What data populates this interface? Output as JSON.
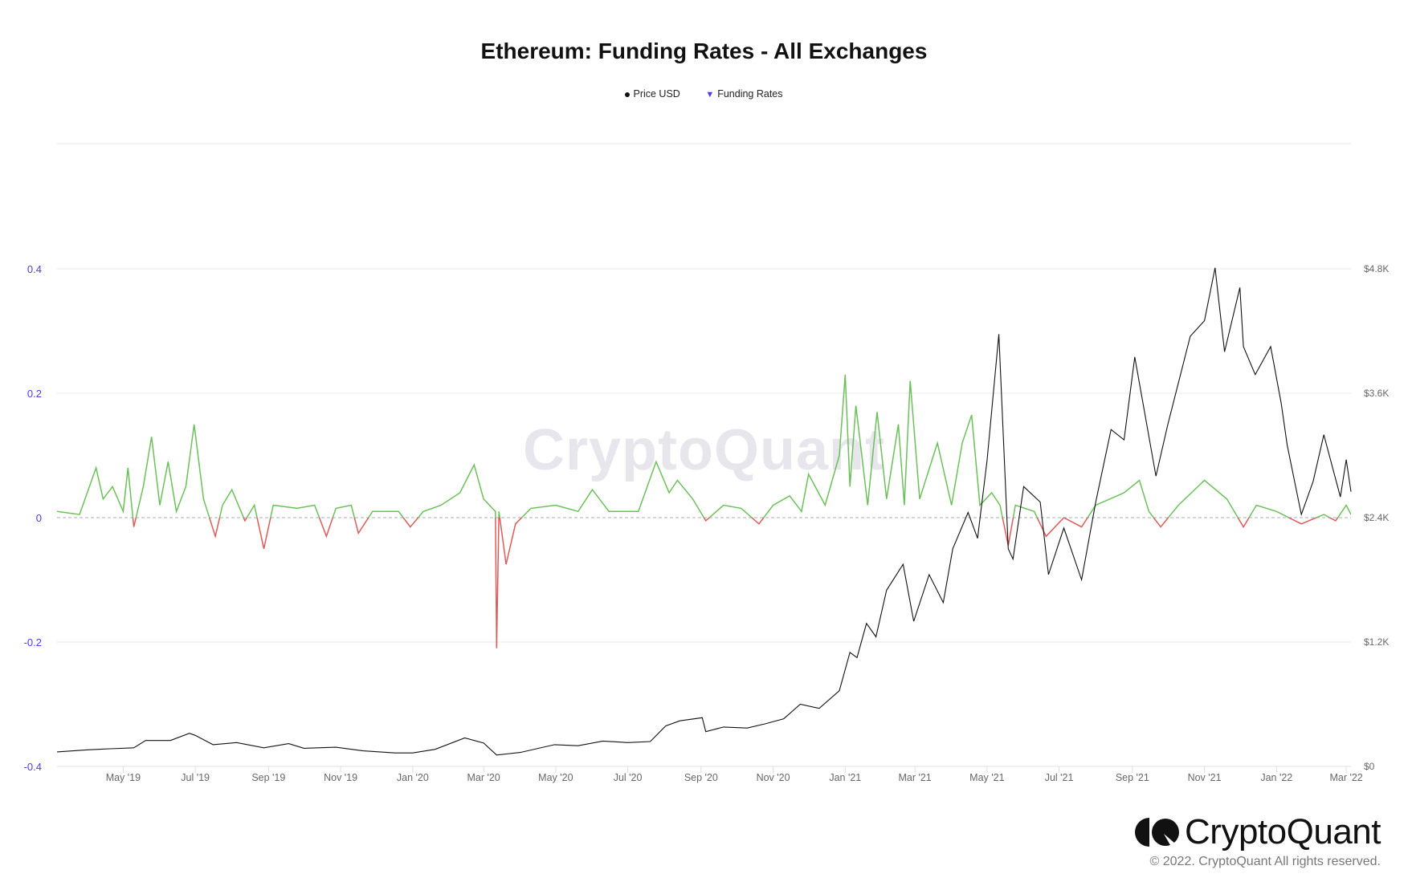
{
  "chart_data": {
    "type": "line",
    "title": "Ethereum: Funding Rates - All Exchanges",
    "legend": [
      {
        "name": "Price USD",
        "marker": "circle",
        "color": "#111111"
      },
      {
        "name": "Funding Rates",
        "marker": "triangle-down",
        "color": "#4a3cf0"
      }
    ],
    "legend_placement": "top-center",
    "x_range": [
      "2019-03-06",
      "2022-03-05"
    ],
    "x_ticks": [
      "May '19",
      "Jul '19",
      "Sep '19",
      "Nov '19",
      "Jan '20",
      "Mar '20",
      "May '20",
      "Jul '20",
      "Sep '20",
      "Nov '20",
      "Jan '21",
      "Mar '21",
      "May '21",
      "Jul '21",
      "Sep '21",
      "Nov '21",
      "Jan '22",
      "Mar '22"
    ],
    "x_tick_dates": [
      "2019-05-01",
      "2019-07-01",
      "2019-09-01",
      "2019-11-01",
      "2020-01-01",
      "2020-03-01",
      "2020-05-01",
      "2020-07-01",
      "2020-09-01",
      "2020-11-01",
      "2021-01-01",
      "2021-03-01",
      "2021-05-01",
      "2021-07-01",
      "2021-09-01",
      "2021-11-01",
      "2022-01-01",
      "2022-03-01"
    ],
    "y_left": {
      "range": [
        -0.4,
        0.4
      ],
      "ticks": [
        "0.4",
        "0.2",
        "0",
        "-0.2",
        "-0.4"
      ],
      "tick_values": [
        0.4,
        0.2,
        0,
        -0.2,
        -0.4
      ],
      "color": "#4a3cf0"
    },
    "y_right": {
      "range": [
        0,
        4800
      ],
      "ticks": [
        "$4.8K",
        "$3.6K",
        "$2.4K",
        "$1.2K",
        "$0"
      ],
      "tick_values": [
        4800,
        3600,
        2400,
        1200,
        0
      ]
    },
    "grid": true,
    "colors": {
      "positive": "#6cc05a",
      "negative": "#e05a5a",
      "price": "#111111"
    },
    "series": [
      {
        "name": "Price USD",
        "axis": "right",
        "points": [
          [
            "2019-03-06",
            140
          ],
          [
            "2019-04-01",
            160
          ],
          [
            "2019-04-20",
            170
          ],
          [
            "2019-05-10",
            180
          ],
          [
            "2019-05-20",
            250
          ],
          [
            "2019-06-10",
            250
          ],
          [
            "2019-06-26",
            320
          ],
          [
            "2019-07-01",
            300
          ],
          [
            "2019-07-16",
            210
          ],
          [
            "2019-08-05",
            230
          ],
          [
            "2019-08-28",
            180
          ],
          [
            "2019-09-18",
            220
          ],
          [
            "2019-10-01",
            175
          ],
          [
            "2019-10-28",
            185
          ],
          [
            "2019-11-20",
            150
          ],
          [
            "2019-12-17",
            130
          ],
          [
            "2020-01-01",
            130
          ],
          [
            "2020-01-20",
            165
          ],
          [
            "2020-02-14",
            275
          ],
          [
            "2020-03-01",
            225
          ],
          [
            "2020-03-12",
            110
          ],
          [
            "2020-04-01",
            135
          ],
          [
            "2020-04-30",
            210
          ],
          [
            "2020-05-20",
            200
          ],
          [
            "2020-06-10",
            245
          ],
          [
            "2020-07-01",
            230
          ],
          [
            "2020-07-20",
            240
          ],
          [
            "2020-08-02",
            390
          ],
          [
            "2020-08-14",
            440
          ],
          [
            "2020-09-02",
            470
          ],
          [
            "2020-09-05",
            335
          ],
          [
            "2020-09-20",
            380
          ],
          [
            "2020-10-10",
            370
          ],
          [
            "2020-10-25",
            410
          ],
          [
            "2020-11-10",
            460
          ],
          [
            "2020-11-24",
            600
          ],
          [
            "2020-12-10",
            560
          ],
          [
            "2020-12-27",
            730
          ],
          [
            "2021-01-05",
            1100
          ],
          [
            "2021-01-11",
            1050
          ],
          [
            "2021-01-19",
            1380
          ],
          [
            "2021-01-27",
            1250
          ],
          [
            "2021-02-05",
            1700
          ],
          [
            "2021-02-19",
            1950
          ],
          [
            "2021-02-28",
            1400
          ],
          [
            "2021-03-13",
            1850
          ],
          [
            "2021-03-25",
            1580
          ],
          [
            "2021-04-02",
            2100
          ],
          [
            "2021-04-15",
            2450
          ],
          [
            "2021-04-23",
            2200
          ],
          [
            "2021-05-01",
            2950
          ],
          [
            "2021-05-11",
            4170
          ],
          [
            "2021-05-19",
            2100
          ],
          [
            "2021-05-23",
            2000
          ],
          [
            "2021-06-01",
            2700
          ],
          [
            "2021-06-15",
            2550
          ],
          [
            "2021-06-22",
            1850
          ],
          [
            "2021-07-05",
            2300
          ],
          [
            "2021-07-20",
            1800
          ],
          [
            "2021-08-01",
            2550
          ],
          [
            "2021-08-14",
            3250
          ],
          [
            "2021-08-25",
            3150
          ],
          [
            "2021-09-03",
            3950
          ],
          [
            "2021-09-21",
            2800
          ],
          [
            "2021-10-01",
            3300
          ],
          [
            "2021-10-20",
            4150
          ],
          [
            "2021-11-01",
            4300
          ],
          [
            "2021-11-10",
            4810
          ],
          [
            "2021-11-18",
            4000
          ],
          [
            "2021-12-01",
            4620
          ],
          [
            "2021-12-04",
            4050
          ],
          [
            "2021-12-14",
            3780
          ],
          [
            "2021-12-27",
            4050
          ],
          [
            "2022-01-05",
            3500
          ],
          [
            "2022-01-10",
            3100
          ],
          [
            "2022-01-22",
            2430
          ],
          [
            "2022-02-01",
            2750
          ],
          [
            "2022-02-10",
            3200
          ],
          [
            "2022-02-24",
            2600
          ],
          [
            "2022-03-01",
            2960
          ],
          [
            "2022-03-05",
            2650
          ]
        ]
      },
      {
        "name": "Funding Rates",
        "axis": "left",
        "points": [
          [
            "2019-03-06",
            0.01
          ],
          [
            "2019-03-25",
            0.005
          ],
          [
            "2019-04-08",
            0.08
          ],
          [
            "2019-04-14",
            0.03
          ],
          [
            "2019-04-22",
            0.05
          ],
          [
            "2019-05-01",
            0.01
          ],
          [
            "2019-05-05",
            0.08
          ],
          [
            "2019-05-10",
            -0.015
          ],
          [
            "2019-05-18",
            0.05
          ],
          [
            "2019-05-25",
            0.13
          ],
          [
            "2019-06-01",
            0.02
          ],
          [
            "2019-06-08",
            0.09
          ],
          [
            "2019-06-15",
            0.01
          ],
          [
            "2019-06-23",
            0.05
          ],
          [
            "2019-06-30",
            0.15
          ],
          [
            "2019-07-08",
            0.03
          ],
          [
            "2019-07-18",
            -0.03
          ],
          [
            "2019-07-24",
            0.02
          ],
          [
            "2019-08-01",
            0.045
          ],
          [
            "2019-08-12",
            -0.005
          ],
          [
            "2019-08-20",
            0.02
          ],
          [
            "2019-08-28",
            -0.05
          ],
          [
            "2019-09-05",
            0.02
          ],
          [
            "2019-09-25",
            0.015
          ],
          [
            "2019-10-10",
            0.02
          ],
          [
            "2019-10-20",
            -0.03
          ],
          [
            "2019-10-28",
            0.015
          ],
          [
            "2019-11-10",
            0.02
          ],
          [
            "2019-11-16",
            -0.025
          ],
          [
            "2019-11-28",
            0.01
          ],
          [
            "2019-12-20",
            0.01
          ],
          [
            "2019-12-30",
            -0.015
          ],
          [
            "2020-01-10",
            0.01
          ],
          [
            "2020-01-25",
            0.02
          ],
          [
            "2020-02-10",
            0.04
          ],
          [
            "2020-02-22",
            0.085
          ],
          [
            "2020-03-01",
            0.03
          ],
          [
            "2020-03-11",
            0.01
          ],
          [
            "2020-03-12",
            -0.21
          ],
          [
            "2020-03-14",
            0.01
          ],
          [
            "2020-03-20",
            -0.075
          ],
          [
            "2020-03-28",
            -0.01
          ],
          [
            "2020-04-10",
            0.015
          ],
          [
            "2020-05-01",
            0.02
          ],
          [
            "2020-05-20",
            0.01
          ],
          [
            "2020-06-01",
            0.045
          ],
          [
            "2020-06-15",
            0.01
          ],
          [
            "2020-07-10",
            0.01
          ],
          [
            "2020-07-25",
            0.09
          ],
          [
            "2020-08-05",
            0.04
          ],
          [
            "2020-08-12",
            0.06
          ],
          [
            "2020-08-25",
            0.03
          ],
          [
            "2020-09-05",
            -0.005
          ],
          [
            "2020-09-20",
            0.02
          ],
          [
            "2020-10-05",
            0.015
          ],
          [
            "2020-10-20",
            -0.01
          ],
          [
            "2020-11-01",
            0.02
          ],
          [
            "2020-11-15",
            0.035
          ],
          [
            "2020-11-25",
            0.01
          ],
          [
            "2020-12-01",
            0.07
          ],
          [
            "2020-12-15",
            0.02
          ],
          [
            "2020-12-27",
            0.1
          ],
          [
            "2021-01-01",
            0.23
          ],
          [
            "2021-01-05",
            0.05
          ],
          [
            "2021-01-10",
            0.18
          ],
          [
            "2021-01-20",
            0.02
          ],
          [
            "2021-01-28",
            0.17
          ],
          [
            "2021-02-05",
            0.03
          ],
          [
            "2021-02-15",
            0.15
          ],
          [
            "2021-02-20",
            0.02
          ],
          [
            "2021-02-25",
            0.22
          ],
          [
            "2021-03-05",
            0.03
          ],
          [
            "2021-03-20",
            0.12
          ],
          [
            "2021-04-01",
            0.02
          ],
          [
            "2021-04-10",
            0.12
          ],
          [
            "2021-04-18",
            0.165
          ],
          [
            "2021-04-25",
            0.02
          ],
          [
            "2021-05-05",
            0.04
          ],
          [
            "2021-05-12",
            0.02
          ],
          [
            "2021-05-19",
            -0.045
          ],
          [
            "2021-05-25",
            0.02
          ],
          [
            "2021-06-10",
            0.01
          ],
          [
            "2021-06-20",
            -0.03
          ],
          [
            "2021-07-05",
            0.0
          ],
          [
            "2021-07-20",
            -0.015
          ],
          [
            "2021-08-01",
            0.02
          ],
          [
            "2021-08-25",
            0.04
          ],
          [
            "2021-09-07",
            0.06
          ],
          [
            "2021-09-15",
            0.01
          ],
          [
            "2021-09-25",
            -0.015
          ],
          [
            "2021-10-10",
            0.02
          ],
          [
            "2021-11-01",
            0.06
          ],
          [
            "2021-11-20",
            0.03
          ],
          [
            "2021-12-04",
            -0.015
          ],
          [
            "2021-12-15",
            0.02
          ],
          [
            "2022-01-01",
            0.01
          ],
          [
            "2022-01-22",
            -0.01
          ],
          [
            "2022-02-10",
            0.005
          ],
          [
            "2022-02-20",
            -0.005
          ],
          [
            "2022-03-01",
            0.02
          ],
          [
            "2022-03-05",
            0.005
          ]
        ]
      }
    ]
  },
  "watermark": "CryptoQuant",
  "footer": {
    "brand": "CryptoQuant",
    "copyright": "© 2022. CryptoQuant All rights reserved."
  }
}
